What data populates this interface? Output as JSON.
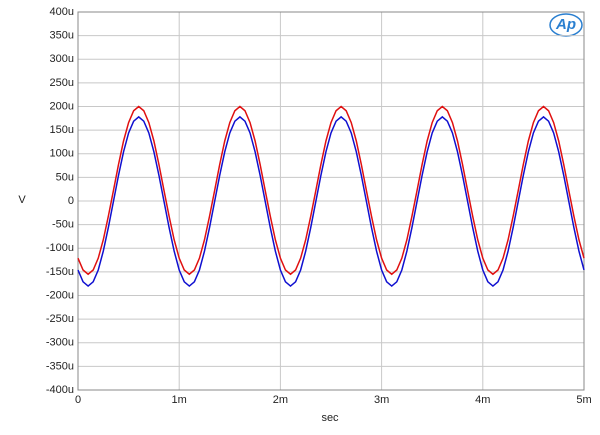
{
  "chart_data": {
    "type": "line",
    "y_label": "V",
    "x_label": "sec",
    "logo": "Ap",
    "xlim": [
      0,
      0.005
    ],
    "ylim": [
      -0.0004,
      0.0004
    ],
    "xticks": [
      0,
      {
        "value": 0.001,
        "label": "1m"
      },
      {
        "value": 0.002,
        "label": "2m"
      },
      {
        "value": 0.003,
        "label": "3m"
      },
      {
        "value": 0.004,
        "label": "4m"
      },
      {
        "value": 0.005,
        "label": "5m"
      }
    ],
    "yticks": [
      {
        "value": -0.0004,
        "label": "-400u"
      },
      {
        "value": -0.00035,
        "label": "-350u"
      },
      {
        "value": -0.0003,
        "label": "-300u"
      },
      {
        "value": -0.00025,
        "label": "-250u"
      },
      {
        "value": -0.0002,
        "label": "-200u"
      },
      {
        "value": -0.00015,
        "label": "-150u"
      },
      {
        "value": -0.0001,
        "label": "-100u"
      },
      {
        "value": -5e-05,
        "label": "-50u"
      },
      0,
      {
        "value": 5e-05,
        "label": "50u"
      },
      {
        "value": 0.0001,
        "label": "100u"
      },
      {
        "value": 0.00015,
        "label": "150u"
      },
      {
        "value": 0.0002,
        "label": "200u"
      },
      {
        "value": 0.00025,
        "label": "250u"
      },
      {
        "value": 0.0003,
        "label": "300u"
      },
      {
        "value": 0.00035,
        "label": "350u"
      },
      {
        "value": 0.0004,
        "label": "400u"
      }
    ],
    "grid": true,
    "x": [
      0,
      5e-05,
      0.0001,
      0.00015,
      0.0002,
      0.00025,
      0.0003,
      0.00035,
      0.0004,
      0.00045,
      0.0005,
      0.00055,
      0.0006,
      0.00065,
      0.0007,
      0.00075,
      0.0008,
      0.00085,
      0.0009,
      0.00095,
      0.001,
      0.00105,
      0.0011,
      0.00115,
      0.0012,
      0.00125,
      0.0013,
      0.00135,
      0.0014,
      0.00145,
      0.0015,
      0.00155,
      0.0016,
      0.00165,
      0.0017,
      0.00175,
      0.0018,
      0.00185,
      0.0019,
      0.00195,
      0.002,
      0.00205,
      0.0021,
      0.00215,
      0.0022,
      0.00225,
      0.0023,
      0.00235,
      0.0024,
      0.00245,
      0.0025,
      0.00255,
      0.0026,
      0.00265,
      0.0027,
      0.00275,
      0.0028,
      0.00285,
      0.0029,
      0.00295,
      0.003,
      0.00305,
      0.0031,
      0.00315,
      0.0032,
      0.00325,
      0.0033,
      0.00335,
      0.0034,
      0.00345,
      0.0035,
      0.00355,
      0.0036,
      0.00365,
      0.0037,
      0.00375,
      0.0038,
      0.00385,
      0.0039,
      0.00395,
      0.004,
      0.00405,
      0.0041,
      0.00415,
      0.0042,
      0.00425,
      0.0043,
      0.00435,
      0.0044,
      0.00445,
      0.0045,
      0.00455,
      0.0046,
      0.00465,
      0.0047,
      0.00475,
      0.0048,
      0.00485,
      0.0049,
      0.00495,
      0.005
    ],
    "series": [
      {
        "color": "#e01010",
        "values": [
          -0.000121,
          -0.000146,
          -0.000155,
          -0.000146,
          -0.000121,
          -8.2e-05,
          -3.2e-05,
          2.2e-05,
          7.7e-05,
          0.000127,
          0.000166,
          0.000191,
          0.0002,
          0.000191,
          0.000166,
          0.000127,
          7.7e-05,
          2.2e-05,
          -3.2e-05,
          -8.2e-05,
          -0.000121,
          -0.000146,
          -0.000155,
          -0.000146,
          -0.000121,
          -8.2e-05,
          -3.2e-05,
          2.2e-05,
          7.7e-05,
          0.000127,
          0.000166,
          0.000191,
          0.0002,
          0.000191,
          0.000166,
          0.000127,
          7.7e-05,
          2.2e-05,
          -3.2e-05,
          -8.2e-05,
          -0.000121,
          -0.000146,
          -0.000155,
          -0.000146,
          -0.000121,
          -8.2e-05,
          -3.2e-05,
          2.2e-05,
          7.7e-05,
          0.000127,
          0.000166,
          0.000191,
          0.0002,
          0.000191,
          0.000166,
          0.000127,
          7.7e-05,
          2.2e-05,
          -3.2e-05,
          -8.2e-05,
          -0.000121,
          -0.000146,
          -0.000155,
          -0.000146,
          -0.000121,
          -8.2e-05,
          -3.2e-05,
          2.2e-05,
          7.7e-05,
          0.000127,
          0.000166,
          0.000191,
          0.0002,
          0.000191,
          0.000166,
          0.000127,
          7.7e-05,
          2.2e-05,
          -3.2e-05,
          -8.2e-05,
          -0.000121,
          -0.000146,
          -0.000155,
          -0.000146,
          -0.000121,
          -8.2e-05,
          -3.2e-05,
          2.2e-05,
          7.7e-05,
          0.000127,
          0.000166,
          0.000191,
          0.0002,
          0.000191,
          0.000166,
          0.000127,
          7.7e-05,
          2.2e-05,
          -3.2e-05,
          -8.2e-05,
          -0.000121
        ]
      },
      {
        "color": "#1010d0",
        "values": [
          -0.000146,
          -0.000171,
          -0.00018,
          -0.000171,
          -0.000146,
          -0.000106,
          -5.6e-05,
          -1e-06,
          5.4e-05,
          0.000104,
          0.000144,
          0.000169,
          0.000178,
          0.000169,
          0.000144,
          0.000104,
          5.4e-05,
          -1e-06,
          -5.6e-05,
          -0.000106,
          -0.000146,
          -0.000171,
          -0.00018,
          -0.000171,
          -0.000146,
          -0.000106,
          -5.6e-05,
          -1e-06,
          5.4e-05,
          0.000104,
          0.000144,
          0.000169,
          0.000178,
          0.000169,
          0.000144,
          0.000104,
          5.4e-05,
          -1e-06,
          -5.6e-05,
          -0.000106,
          -0.000146,
          -0.000171,
          -0.00018,
          -0.000171,
          -0.000146,
          -0.000106,
          -5.6e-05,
          -1e-06,
          5.4e-05,
          0.000104,
          0.000144,
          0.000169,
          0.000178,
          0.000169,
          0.000144,
          0.000104,
          5.4e-05,
          -1e-06,
          -5.6e-05,
          -0.000106,
          -0.000146,
          -0.000171,
          -0.00018,
          -0.000171,
          -0.000146,
          -0.000106,
          -5.6e-05,
          -1e-06,
          5.4e-05,
          0.000104,
          0.000144,
          0.000169,
          0.000178,
          0.000169,
          0.000144,
          0.000104,
          5.4e-05,
          -1e-06,
          -5.6e-05,
          -0.000106,
          -0.000146,
          -0.000171,
          -0.00018,
          -0.000171,
          -0.000146,
          -0.000106,
          -5.6e-05,
          -1e-06,
          5.4e-05,
          0.000104,
          0.000144,
          0.000169,
          0.000178,
          0.000169,
          0.000144,
          0.000104,
          5.4e-05,
          -1e-06,
          -5.6e-05,
          -0.000106,
          -0.000146
        ]
      }
    ]
  }
}
